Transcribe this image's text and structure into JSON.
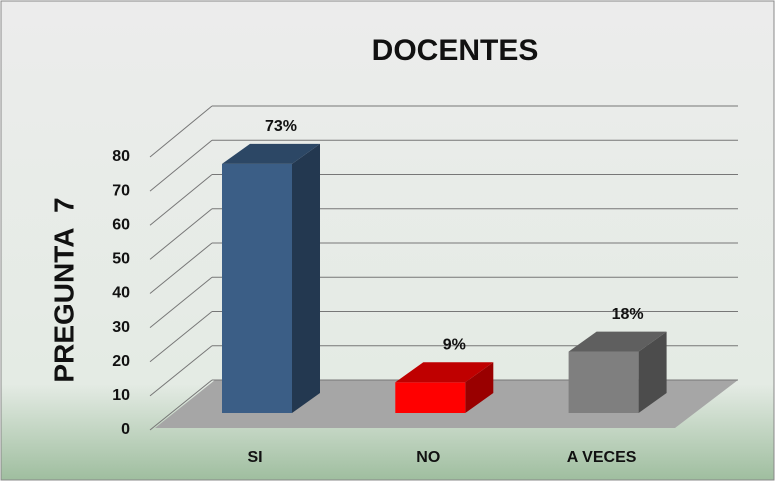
{
  "chart_data": {
    "type": "bar3d",
    "title": "DOCENTES",
    "y_label": "PREGUNTA  7",
    "categories": [
      "SI",
      "NO",
      "A VECES"
    ],
    "values": [
      73,
      9,
      18
    ],
    "value_labels": [
      "73%",
      "9%",
      "18%"
    ],
    "colors": [
      "#3b5e86",
      "#ff0000",
      "#7f7f7f"
    ],
    "ylim": [
      0,
      80
    ],
    "yticks": [
      0,
      10,
      20,
      30,
      40,
      50,
      60,
      70,
      80
    ],
    "grid": true
  }
}
